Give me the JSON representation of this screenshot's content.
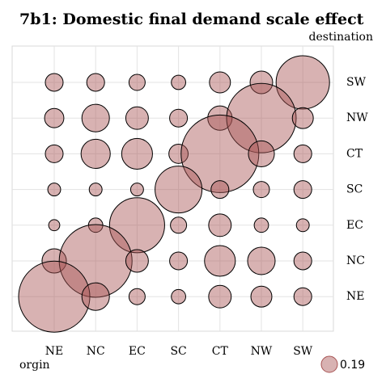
{
  "chart_data": {
    "type": "bubble",
    "title": "7b1: Domestic final demand scale effect",
    "x_label": "orgin",
    "y_label": "destination",
    "categories": [
      "NE",
      "NC",
      "EC",
      "SC",
      "CT",
      "NW",
      "SW"
    ],
    "y_categories": [
      "SW",
      "NW",
      "CT",
      "SC",
      "EC",
      "NC",
      "NE"
    ],
    "sizes": [
      [
        0.23,
        0.23,
        0.19,
        0.15,
        0.32,
        0.37,
        2.07
      ],
      [
        0.27,
        0.55,
        0.37,
        0.23,
        0.43,
        3.51,
        0.32
      ],
      [
        0.23,
        0.62,
        0.69,
        0.27,
        4.38,
        0.49,
        0.23
      ],
      [
        0.12,
        0.12,
        0.12,
        1.6,
        0.23,
        0.19,
        0.23
      ],
      [
        0.09,
        0.15,
        2.2,
        0.19,
        0.37,
        0.15,
        0.12
      ],
      [
        0.43,
        3.85,
        0.37,
        0.23,
        0.69,
        0.55,
        0.23
      ],
      [
        3.68,
        0.55,
        0.19,
        0.15,
        0.37,
        0.32,
        0.23
      ]
    ],
    "size_legend": 0.19,
    "color": "#a85454",
    "grid": true
  }
}
